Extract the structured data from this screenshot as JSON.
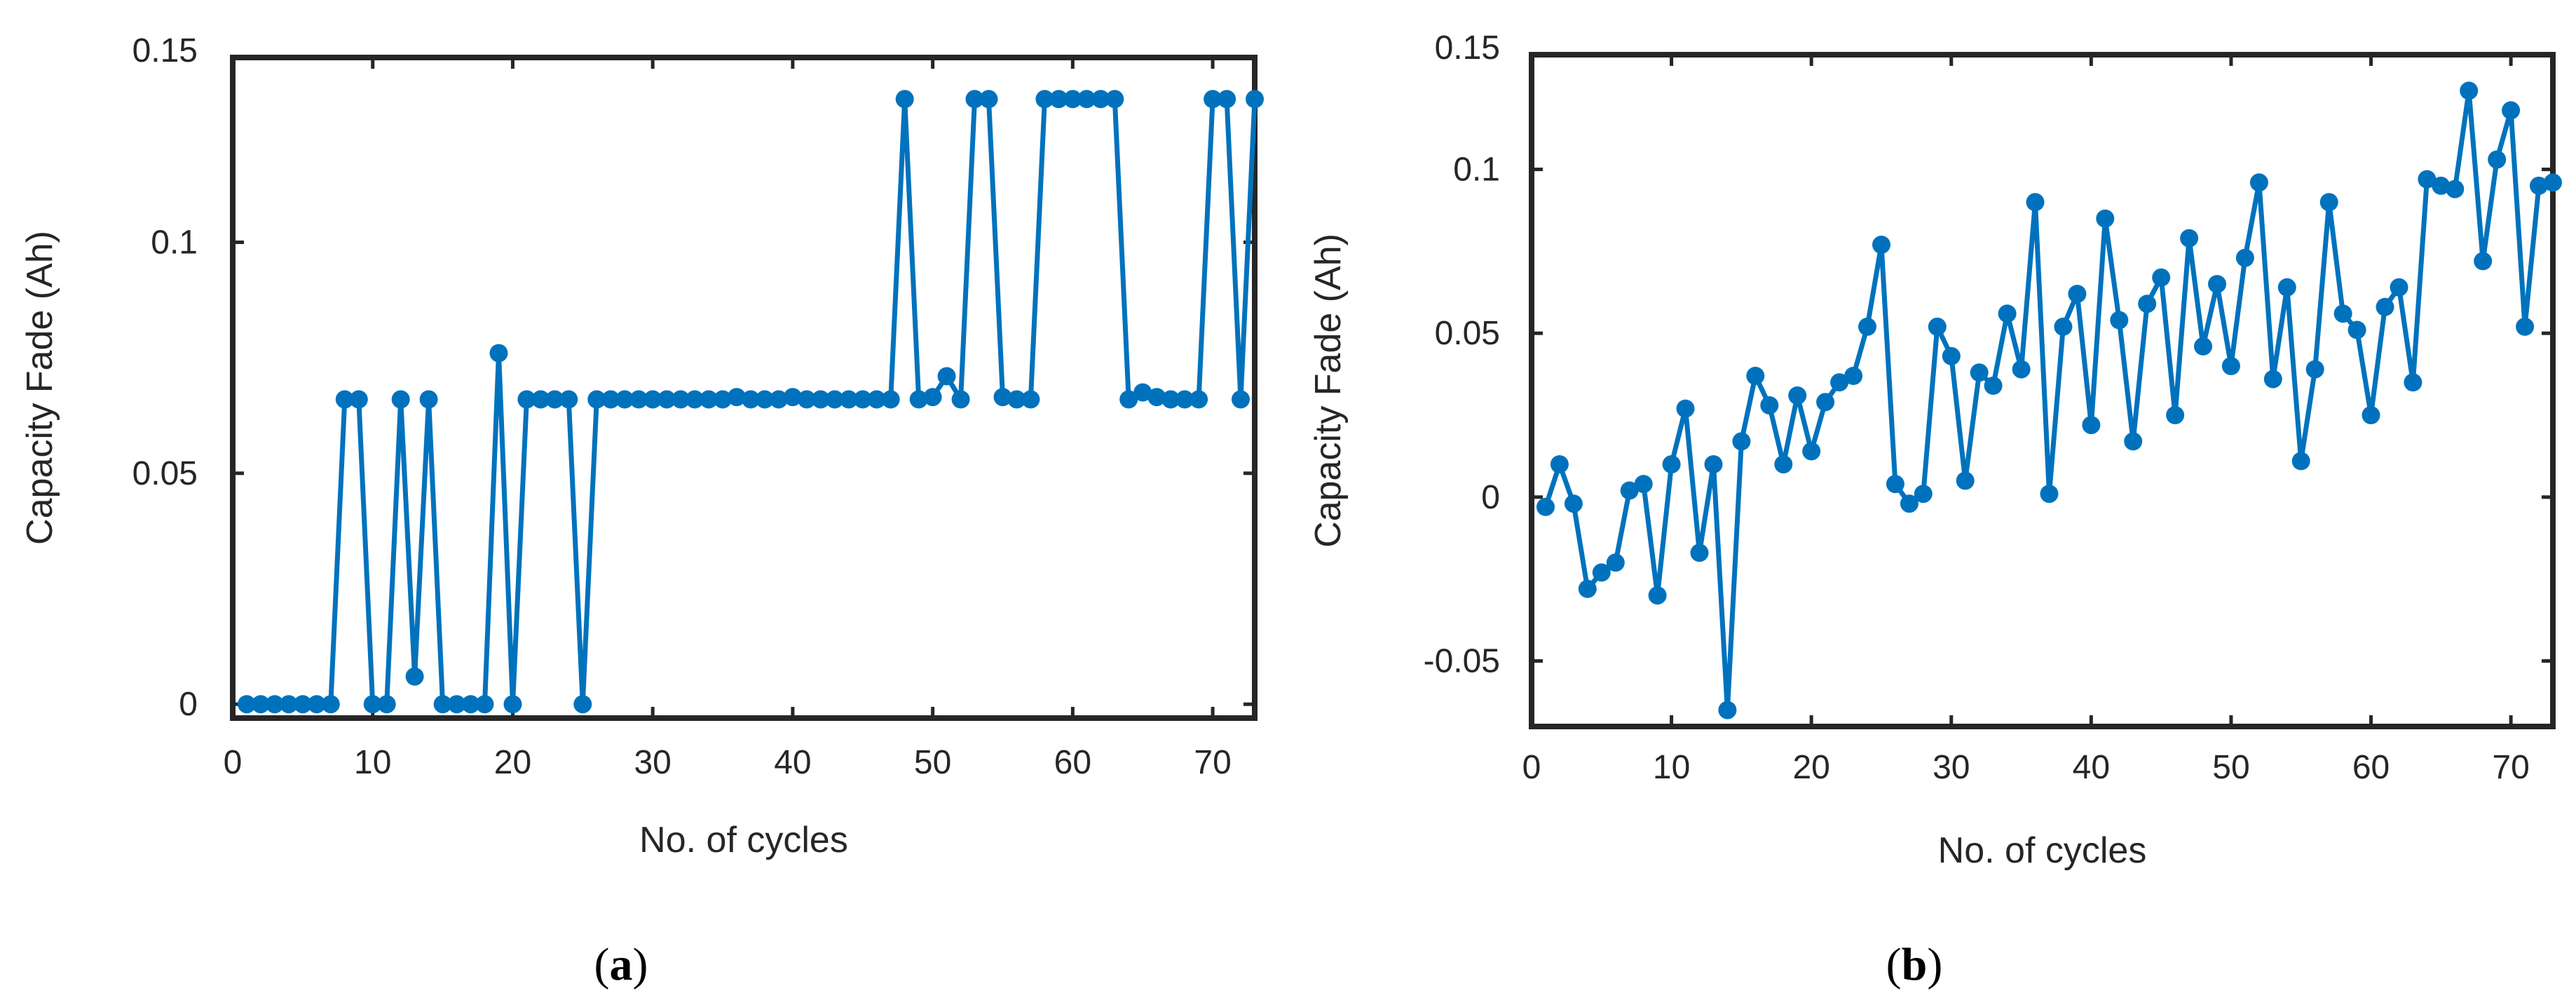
{
  "colors": {
    "series": "#0072BD",
    "axis": "#262626"
  },
  "captions": [
    {
      "open": "(",
      "letter": "a",
      "close": ")"
    },
    {
      "open": "(",
      "letter": "b",
      "close": ")"
    }
  ],
  "chart_data": [
    {
      "type": "line",
      "marker": "circle",
      "xlabel": "No. of cycles",
      "ylabel": "Capacity Fade (Ah)",
      "xlim": [
        0,
        73
      ],
      "ylim": [
        -0.003,
        0.14
      ],
      "xticks": [
        0,
        10,
        20,
        30,
        40,
        50,
        60,
        70
      ],
      "xtick_labels": [
        "0",
        "10",
        "20",
        "30",
        "40",
        "50",
        "60",
        "70"
      ],
      "yticks": [
        0,
        0.05,
        0.1,
        0.15
      ],
      "ytick_labels": [
        "0",
        "0.05",
        "0.1",
        "0.15"
      ],
      "grid": false,
      "x": [
        1,
        2,
        3,
        4,
        5,
        6,
        7,
        8,
        9,
        10,
        11,
        12,
        13,
        14,
        15,
        16,
        17,
        18,
        19,
        20,
        21,
        22,
        23,
        24,
        25,
        26,
        27,
        28,
        29,
        30,
        31,
        32,
        33,
        34,
        35,
        36,
        37,
        38,
        39,
        40,
        41,
        42,
        43,
        44,
        45,
        46,
        47,
        48,
        49,
        50,
        51,
        52,
        53,
        54,
        55,
        56,
        57,
        58,
        59,
        60,
        61,
        62,
        63,
        64,
        65,
        66,
        67,
        68,
        69,
        70,
        71,
        72,
        73
      ],
      "y": [
        0,
        0,
        0,
        0,
        0,
        0,
        0,
        0.066,
        0.066,
        0,
        0,
        0.066,
        0.006,
        0.066,
        0,
        0,
        0,
        0,
        0.076,
        0,
        0.066,
        0.066,
        0.066,
        0.066,
        0,
        0.066,
        0.066,
        0.066,
        0.066,
        0.066,
        0.066,
        0.066,
        0.066,
        0.066,
        0.066,
        0.0665,
        0.066,
        0.066,
        0.066,
        0.0665,
        0.066,
        0.066,
        0.066,
        0.066,
        0.066,
        0.066,
        0.066,
        0.131,
        0.066,
        0.0665,
        0.071,
        0.066,
        0.131,
        0.131,
        0.0665,
        0.066,
        0.066,
        0.131,
        0.131,
        0.131,
        0.131,
        0.131,
        0.131,
        0.066,
        0.0675,
        0.0665,
        0.066,
        0.066,
        0.066,
        0.131,
        0.131,
        0.066,
        0.131
      ]
    },
    {
      "type": "line",
      "marker": "circle",
      "xlabel": "No. of cycles",
      "ylabel": "Capacity Fade (Ah)",
      "xlim": [
        0,
        73
      ],
      "ylim": [
        -0.07,
        0.135
      ],
      "xticks": [
        0,
        10,
        20,
        30,
        40,
        50,
        60,
        70
      ],
      "xtick_labels": [
        "0",
        "10",
        "20",
        "30",
        "40",
        "50",
        "60",
        "70"
      ],
      "yticks": [
        -0.05,
        0,
        0.05,
        0.1,
        0.15
      ],
      "ytick_labels": [
        "-0.05",
        "0",
        "0.05",
        "0.1",
        "0.15"
      ],
      "grid": false,
      "x": [
        1,
        2,
        3,
        4,
        5,
        6,
        7,
        8,
        9,
        10,
        11,
        12,
        13,
        14,
        15,
        16,
        17,
        18,
        19,
        20,
        21,
        22,
        23,
        24,
        25,
        26,
        27,
        28,
        29,
        30,
        31,
        32,
        33,
        34,
        35,
        36,
        37,
        38,
        39,
        40,
        41,
        42,
        43,
        44,
        45,
        46,
        47,
        48,
        49,
        50,
        51,
        52,
        53,
        54,
        55,
        56,
        57,
        58,
        59,
        60,
        61,
        62,
        63,
        64,
        65,
        66,
        67,
        68,
        69,
        70,
        71,
        72,
        73
      ],
      "y": [
        -0.003,
        0.01,
        -0.002,
        -0.028,
        -0.023,
        -0.02,
        0.002,
        0.004,
        -0.03,
        0.01,
        0.027,
        -0.017,
        0.01,
        -0.065,
        0.017,
        0.037,
        0.028,
        0.01,
        0.031,
        0.014,
        0.029,
        0.035,
        0.037,
        0.052,
        0.077,
        0.004,
        -0.002,
        0.001,
        0.052,
        0.043,
        0.005,
        0.038,
        0.034,
        0.056,
        0.039,
        0.09,
        0.001,
        0.052,
        0.062,
        0.022,
        0.085,
        0.054,
        0.017,
        0.059,
        0.067,
        0.025,
        0.079,
        0.046,
        0.065,
        0.04,
        0.073,
        0.096,
        0.036,
        0.064,
        0.011,
        0.039,
        0.09,
        0.056,
        0.051,
        0.025,
        0.058,
        0.064,
        0.035,
        0.097,
        0.095,
        0.094,
        0.124,
        0.072,
        0.103,
        0.118,
        0.052,
        0.095,
        0.096
      ]
    }
  ]
}
